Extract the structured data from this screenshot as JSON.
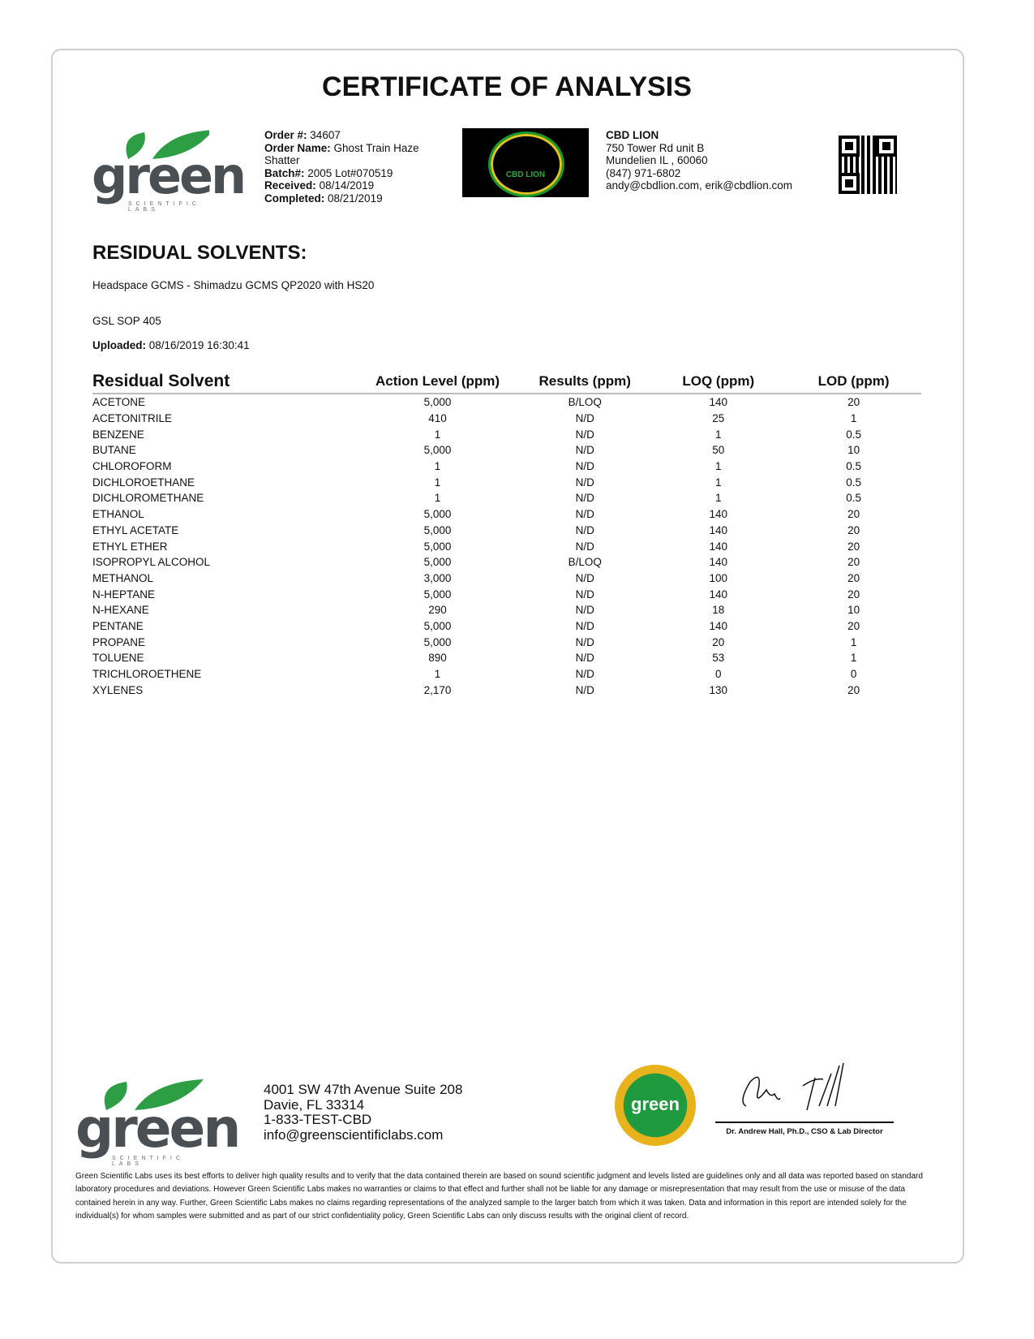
{
  "title": "CERTIFICATE OF ANALYSIS",
  "logo": {
    "word": "green",
    "sub": "SCIENTIFIC LABS",
    "tm": "™"
  },
  "order": {
    "order_no_label": "Order #:",
    "order_no": "34607",
    "order_name_label": "Order Name:",
    "order_name": "Ghost Train Haze",
    "order_name_line2": "Shatter",
    "batch_label": "Batch#:",
    "batch": "2005 Lot#070519",
    "received_label": "Received:",
    "received": "08/14/2019",
    "completed_label": "Completed:",
    "completed": "08/21/2019"
  },
  "client_logo_text": "CBD LION",
  "client": {
    "name": "CBD LION",
    "address1": "750 Tower Rd unit B",
    "address2": "Mundelien IL , 60060",
    "phone": "(847) 971-6802",
    "email": "andy@cbdlion.com, erik@cbdlion.com"
  },
  "section": {
    "title": "RESIDUAL SOLVENTS:",
    "method": "Headspace GCMS - Shimadzu GCMS QP2020 with HS20",
    "sop": "GSL SOP 405",
    "uploaded_label": "Uploaded:",
    "uploaded": "08/16/2019 16:30:41"
  },
  "table": {
    "headers": [
      "Residual Solvent",
      "Action Level (ppm)",
      "Results (ppm)",
      "LOQ (ppm)",
      "LOD (ppm)"
    ],
    "rows": [
      [
        "ACETONE",
        "5,000",
        "B/LOQ",
        "140",
        "20"
      ],
      [
        "ACETONITRILE",
        "410",
        "N/D",
        "25",
        "1"
      ],
      [
        "BENZENE",
        "1",
        "N/D",
        "1",
        "0.5"
      ],
      [
        "BUTANE",
        "5,000",
        "N/D",
        "50",
        "10"
      ],
      [
        "CHLOROFORM",
        "1",
        "N/D",
        "1",
        "0.5"
      ],
      [
        "DICHLOROETHANE",
        "1",
        "N/D",
        "1",
        "0.5"
      ],
      [
        "DICHLOROMETHANE",
        "1",
        "N/D",
        "1",
        "0.5"
      ],
      [
        "ETHANOL",
        "5,000",
        "N/D",
        "140",
        "20"
      ],
      [
        "ETHYL ACETATE",
        "5,000",
        "N/D",
        "140",
        "20"
      ],
      [
        "ETHYL ETHER",
        "5,000",
        "N/D",
        "140",
        "20"
      ],
      [
        "ISOPROPYL ALCOHOL",
        "5,000",
        "B/LOQ",
        "140",
        "20"
      ],
      [
        "METHANOL",
        "3,000",
        "N/D",
        "100",
        "20"
      ],
      [
        "N-HEPTANE",
        "5,000",
        "N/D",
        "140",
        "20"
      ],
      [
        "N-HEXANE",
        "290",
        "N/D",
        "18",
        "10"
      ],
      [
        "PENTANE",
        "5,000",
        "N/D",
        "140",
        "20"
      ],
      [
        "PROPANE",
        "5,000",
        "N/D",
        "20",
        "1"
      ],
      [
        "TOLUENE",
        "890",
        "N/D",
        "53",
        "1"
      ],
      [
        "TRICHLOROETHENE",
        "1",
        "N/D",
        "0",
        "0"
      ],
      [
        "XYLENES",
        "2,170",
        "N/D",
        "130",
        "20"
      ]
    ]
  },
  "footer": {
    "address1": "4001 SW 47th Avenue Suite 208",
    "address2": "Davie, FL 33314",
    "phone": "1-833-TEST-CBD",
    "email": "info@greenscientificlabs.com"
  },
  "seal_text": "green",
  "signer": "Dr. Andrew Hall, Ph.D., CSO & Lab Director",
  "disclaimer": "Green Scientific Labs uses its best efforts to deliver high quality results and to verify that the data contained therein are based on sound scientific judgment and levels listed are guidelines only and all data was reported based on standard laboratory procedures and deviations. However Green Scientific Labs makes no warranties or claims to that effect and further shall not be liable for any damage or misrepresentation that may result from the use or misuse of the data contained herein in any way. Further, Green Scientific Labs makes no claims regarding representations of the analyzed sample to the larger batch from which it was taken. Data and information in this report are intended solely for the individual(s) for whom samples were submitted and as part of our strict confidentiality policy, Green Scientific Labs can only discuss results with the original client of record.",
  "colors": {
    "brand_green": "#2e9e45",
    "logo_gray": "#4a4f54"
  }
}
